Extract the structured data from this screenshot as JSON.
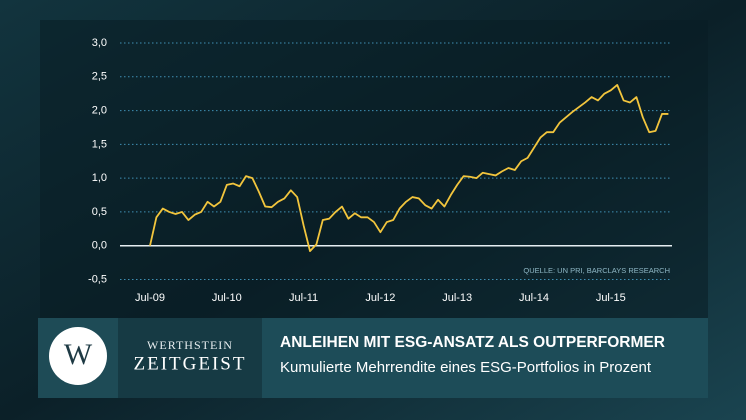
{
  "chart_data": {
    "type": "line",
    "source": "QUELLE: UN PRI, BARCLAYS RESEARCH",
    "categories": [
      "Jul-09",
      null,
      null,
      null,
      null,
      null,
      null,
      null,
      null,
      null,
      null,
      null,
      "Jul-10",
      null,
      null,
      null,
      null,
      null,
      null,
      null,
      null,
      null,
      null,
      null,
      "Jul-11",
      null,
      null,
      null,
      null,
      null,
      null,
      null,
      null,
      null,
      null,
      null,
      "Jul-12",
      null,
      null,
      null,
      null,
      null,
      null,
      null,
      null,
      null,
      null,
      null,
      "Jul-13",
      null,
      null,
      null,
      null,
      null,
      null,
      null,
      null,
      null,
      null,
      null,
      "Jul-14",
      null,
      null,
      null,
      null,
      null,
      null,
      null,
      null,
      null,
      null,
      null,
      "Jul-15",
      null,
      null,
      null,
      null,
      null,
      null,
      null,
      null,
      null
    ],
    "series": [
      {
        "color": "#f2c53d",
        "values": [
          0.0,
          0.42,
          0.55,
          0.5,
          0.47,
          0.5,
          0.38,
          0.46,
          0.5,
          0.65,
          0.58,
          0.65,
          0.9,
          0.92,
          0.88,
          1.03,
          1.0,
          0.8,
          0.58,
          0.57,
          0.65,
          0.7,
          0.82,
          0.72,
          0.3,
          -0.08,
          0.02,
          0.38,
          0.4,
          0.5,
          0.58,
          0.4,
          0.48,
          0.42,
          0.42,
          0.35,
          0.2,
          0.35,
          0.38,
          0.55,
          0.65,
          0.72,
          0.7,
          0.6,
          0.55,
          0.68,
          0.58,
          0.75,
          0.9,
          1.03,
          1.02,
          1.0,
          1.08,
          1.06,
          1.04,
          1.1,
          1.15,
          1.12,
          1.25,
          1.3,
          1.45,
          1.6,
          1.68,
          1.68,
          1.82,
          1.9,
          1.98,
          2.05,
          2.12,
          2.2,
          2.15,
          2.25,
          2.3,
          2.38,
          2.15,
          2.12,
          2.2,
          1.9,
          1.68,
          1.7,
          1.95,
          1.95
        ]
      }
    ],
    "ylim": [
      -0.5,
      3.0
    ],
    "yticks": [
      {
        "value": -0.5,
        "label": "-0,5"
      },
      {
        "value": 0,
        "label": "0,0"
      },
      {
        "value": 0.5,
        "label": "0,5"
      },
      {
        "value": 1,
        "label": "1,0"
      },
      {
        "value": 1.5,
        "label": "1,5"
      },
      {
        "value": 2,
        "label": "2,0"
      },
      {
        "value": 2.5,
        "label": "2,5"
      },
      {
        "value": 3,
        "label": "3,0"
      }
    ],
    "grid": true
  },
  "banner": {
    "logo": "W",
    "brand_top": "WERTHSTEIN",
    "brand_bottom": "ZEITGEIST",
    "title": "ANLEIHEN MIT ESG-ANSATZ ALS OUTPERFORMER",
    "subtitle": "Kumulierte Mehrrendite eines ESG-Portfolios in Prozent"
  }
}
